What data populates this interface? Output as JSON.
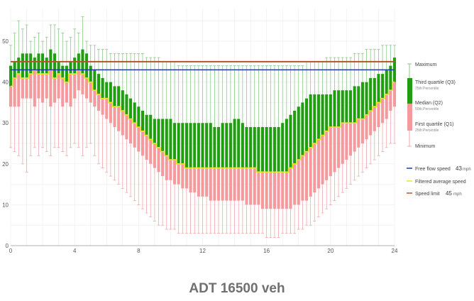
{
  "caption": "ADT 16500 veh",
  "chart_data": {
    "type": "boxplot",
    "x_ticks": [
      0,
      4,
      8,
      12,
      16,
      20,
      24
    ],
    "y_ticks": [
      0,
      10,
      20,
      30,
      40,
      50
    ],
    "xlim": [
      0,
      24
    ],
    "ylim": [
      0,
      58
    ],
    "grid": true,
    "legend_position": "right",
    "interval_hours": 0.25,
    "series_stats": {
      "description_keys": [
        "min",
        "q1",
        "median",
        "q3",
        "max"
      ],
      "hours": [
        0,
        0.25,
        0.5,
        0.75,
        1,
        1.25,
        1.5,
        1.75,
        2,
        2.25,
        2.5,
        2.75,
        3,
        3.25,
        3.5,
        3.75,
        4,
        4.25,
        4.5,
        4.75,
        5,
        5.25,
        5.5,
        5.75,
        6,
        6.25,
        6.5,
        6.75,
        7,
        7.25,
        7.5,
        7.75,
        8,
        8.25,
        8.5,
        8.75,
        9,
        9.25,
        9.5,
        9.75,
        10,
        10.25,
        10.5,
        10.75,
        11,
        11.25,
        11.5,
        11.75,
        12,
        12.25,
        12.5,
        12.75,
        13,
        13.25,
        13.5,
        13.75,
        14,
        14.25,
        14.5,
        14.75,
        15,
        15.25,
        15.5,
        15.75,
        16,
        16.25,
        16.5,
        16.75,
        17,
        17.25,
        17.5,
        17.75,
        18,
        18.25,
        18.5,
        18.75,
        19,
        19.25,
        19.5,
        19.75,
        20,
        20.25,
        20.5,
        20.75,
        21,
        21.25,
        21.5,
        21.75,
        22,
        22.25,
        22.5,
        22.75,
        23,
        23.25,
        23.5,
        23.75,
        24
      ],
      "min": [
        24,
        23,
        22,
        20,
        18,
        22,
        24,
        22,
        24,
        23,
        22,
        24,
        24,
        23,
        22,
        24,
        25,
        24,
        22,
        24,
        25,
        22,
        20,
        19,
        18,
        17,
        16,
        15,
        14,
        13,
        12,
        11,
        10,
        9,
        8,
        7,
        6,
        5,
        5,
        4,
        4,
        4,
        3,
        3,
        3,
        3,
        3,
        3,
        3,
        3,
        3,
        3,
        3,
        3,
        3,
        3,
        3,
        3,
        3,
        3,
        3,
        3,
        3,
        3,
        2,
        2,
        2,
        2,
        3,
        3,
        3,
        3,
        4,
        4,
        5,
        5,
        6,
        7,
        8,
        9,
        10,
        11,
        12,
        13,
        14,
        15,
        16,
        17,
        18,
        19,
        20,
        21,
        22,
        23,
        24,
        25,
        25
      ],
      "q1": [
        34,
        34,
        34,
        36,
        36,
        36,
        34,
        36,
        35,
        36,
        34,
        35,
        36,
        34,
        35,
        34,
        36,
        38,
        37,
        36,
        35,
        34,
        33,
        32,
        31,
        30,
        29,
        28,
        27,
        26,
        25,
        24,
        23,
        22,
        21,
        20,
        19,
        18,
        17,
        16,
        16,
        15,
        15,
        14,
        14,
        13,
        13,
        12,
        12,
        12,
        11,
        11,
        11,
        11,
        11,
        11,
        11,
        11,
        11,
        10,
        10,
        10,
        10,
        9,
        9,
        9,
        9,
        9,
        9,
        9,
        9,
        10,
        10,
        11,
        11,
        12,
        13,
        14,
        15,
        16,
        17,
        18,
        19,
        20,
        21,
        22,
        23,
        24,
        25,
        26,
        27,
        28,
        29,
        30,
        31,
        33,
        34
      ],
      "median": [
        39,
        41,
        42,
        41,
        41,
        42,
        43,
        42,
        42,
        42,
        43,
        41,
        42,
        41,
        40,
        42,
        42,
        43,
        42,
        41,
        40,
        38,
        37,
        36,
        36,
        35,
        34,
        34,
        33,
        32,
        31,
        30,
        29,
        28,
        27,
        26,
        25,
        24,
        23,
        22,
        21,
        21,
        20,
        20,
        19,
        19,
        19,
        19,
        19,
        19,
        19,
        19,
        19,
        19,
        19,
        19,
        19,
        19,
        19,
        19,
        19,
        19,
        18,
        18,
        18,
        18,
        18,
        18,
        18,
        18,
        19,
        20,
        21,
        22,
        23,
        24,
        25,
        26,
        27,
        28,
        29,
        29,
        29,
        30,
        30,
        30,
        30,
        31,
        31,
        32,
        33,
        34,
        35,
        36,
        37,
        38,
        40
      ],
      "q3": [
        44,
        45,
        46,
        47,
        47,
        47,
        46,
        47,
        47,
        46,
        48,
        47,
        45,
        44,
        44,
        45,
        46,
        47,
        48,
        47,
        44,
        43,
        42,
        41,
        40,
        40,
        39,
        39,
        38,
        37,
        36,
        35,
        34,
        33,
        32,
        32,
        31,
        31,
        31,
        31,
        31,
        30,
        30,
        30,
        30,
        30,
        30,
        30,
        30,
        30,
        30,
        29,
        29,
        30,
        30,
        30,
        31,
        31,
        30,
        29,
        29,
        29,
        29,
        29,
        29,
        29,
        29,
        29,
        30,
        31,
        32,
        33,
        34,
        35,
        36,
        37,
        37,
        37,
        37,
        37,
        37,
        38,
        38,
        38,
        38,
        38,
        39,
        39,
        40,
        40,
        41,
        41,
        42,
        42,
        43,
        44,
        46
      ],
      "max": [
        49,
        52,
        55,
        53,
        54,
        50,
        51,
        52,
        50,
        51,
        54,
        54,
        53,
        52,
        50,
        51,
        53,
        52,
        56,
        50,
        49,
        49,
        48,
        48,
        48,
        47,
        47,
        47,
        47,
        47,
        47,
        47,
        47,
        47,
        46,
        46,
        46,
        46,
        45,
        45,
        45,
        45,
        44,
        44,
        44,
        44,
        44,
        44,
        44,
        44,
        44,
        44,
        44,
        44,
        44,
        44,
        44,
        44,
        44,
        44,
        44,
        44,
        44,
        44,
        44,
        44,
        44,
        44,
        44,
        44,
        44,
        44,
        44,
        44,
        45,
        45,
        45,
        45,
        45,
        46,
        46,
        46,
        46,
        46,
        46,
        46,
        47,
        47,
        47,
        48,
        48,
        48,
        48,
        49,
        49,
        49,
        49
      ]
    },
    "reference_lines": {
      "free_flow_speed": 43,
      "speed_limit": 45
    },
    "legend": {
      "maximum": "Maximum",
      "q3": "Third quartile (Q3)",
      "q3_sub": "75th Percentile",
      "median": "Median (Q2)",
      "median_sub": "50th Percentile",
      "q1": "First quartile (Q1)",
      "q1_sub": "25th Percentile",
      "minimum": "Minimum",
      "free_flow": "Free flow speed",
      "free_flow_value": "43",
      "filtered": "Filtered average speed",
      "speed_limit": "Speed limit",
      "speed_limit_value": "45",
      "unit": "mph"
    },
    "colors": {
      "upper_box": "#1f9e0f",
      "lower_box": "#f4999c",
      "upper_whisker": "#8cc98a",
      "lower_whisker": "#f0a8aa",
      "filtered_line": "#e8e830",
      "free_flow_line": "#1d3aa8",
      "speed_limit_line": "#b0572a",
      "grid": "#ececec"
    }
  }
}
